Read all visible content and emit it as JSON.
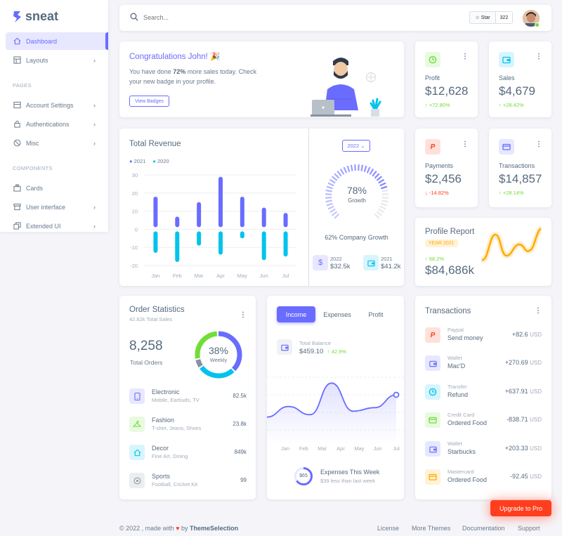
{
  "brand": {
    "name": "sneat",
    "color": "#696cff"
  },
  "sidebar": {
    "items": [
      {
        "label": "Dashboard",
        "icon": "home-icon",
        "active": true
      },
      {
        "label": "Layouts",
        "icon": "layout-icon"
      },
      {
        "label": "Account Settings",
        "icon": "dock-icon"
      },
      {
        "label": "Authentications",
        "icon": "lock-icon"
      },
      {
        "label": "Misc",
        "icon": "cube-icon"
      },
      {
        "label": "Cards",
        "icon": "collection-icon"
      },
      {
        "label": "User interface",
        "icon": "box-icon"
      },
      {
        "label": "Extended UI",
        "icon": "copy-icon"
      }
    ],
    "sections": [
      "PAGES",
      "COMPONENTS"
    ]
  },
  "topbar": {
    "search_placeholder": "Search...",
    "star_label": "Star",
    "star_count": "322"
  },
  "congrats": {
    "title": "Congratulations John! 🎉",
    "text_pre": "You have done ",
    "text_bold": "72%",
    "text_post": " more sales today. Check your new badge in your profile.",
    "button": "View Badges"
  },
  "stats": {
    "profit": {
      "label": "Profit",
      "value": "$12,628",
      "change": "↑ +72.80%"
    },
    "sales": {
      "label": "Sales",
      "value": "$4,679",
      "change": "↑ +28.42%"
    },
    "payments": {
      "label": "Payments",
      "value": "$2,456",
      "change": "↓ -14.82%"
    },
    "transactions": {
      "label": "Transactions",
      "value": "$14,857",
      "change": "↑ +28.14%"
    }
  },
  "revenue": {
    "title": "Total Revenue",
    "year_select": "2022",
    "growth_pct": "78%",
    "growth_label": "Growth",
    "company_growth": "62% Company Growth",
    "growth_fraction": 0.78,
    "summary": [
      {
        "year": "2022",
        "value": "$32.5k"
      },
      {
        "year": "2021",
        "value": "$41.2k"
      }
    ]
  },
  "profile_report": {
    "title": "Profile Report",
    "badge": "YEAR 2021",
    "change": "↑ 68.2%",
    "value": "$84,686k"
  },
  "order_stats": {
    "title": "Order Statistics",
    "subtitle": "42.82k Total Sales",
    "total": "8,258",
    "total_label": "Total Orders",
    "donut_pct": "38%",
    "donut_label": "Weekly",
    "items": [
      {
        "name": "Electronic",
        "sub": "Mobile, Earbuds, TV",
        "value": "82.5k",
        "icon": "mobile-icon",
        "color": "#696cff",
        "bg": "#e7e7ff"
      },
      {
        "name": "Fashion",
        "sub": "T-shirt, Jeans, Shoes",
        "value": "23.8k",
        "icon": "closet-icon",
        "color": "#71dd37",
        "bg": "#e8fadf"
      },
      {
        "name": "Decor",
        "sub": "Fine Art, Dining",
        "value": "849k",
        "icon": "house-icon",
        "color": "#03c3ec",
        "bg": "#d7f5fc"
      },
      {
        "name": "Sports",
        "sub": "Football, Cricket Kit",
        "value": "99",
        "icon": "football-icon",
        "color": "#8592a3",
        "bg": "#ebeef0"
      }
    ]
  },
  "income": {
    "tabs": [
      "Income",
      "Expenses",
      "Profit"
    ],
    "balance_label": "Total Balance",
    "balance_value": "$459.10",
    "balance_change": "↑ 42.9%",
    "expenses_title": "Expenses This Week",
    "expenses_sub": "$39 less than last week",
    "expenses_ring": "$65"
  },
  "transactions": {
    "title": "Transactions",
    "items": [
      {
        "cat": "Paypal",
        "name": "Send money",
        "amount": "+82.6",
        "cur": "USD",
        "icon": "paypal-icon",
        "color": "#ff3e1d",
        "bg": "#ffe0db"
      },
      {
        "cat": "Wallet",
        "name": "Mac'D",
        "amount": "+270.69",
        "cur": "USD",
        "icon": "wallet-icon",
        "color": "#696cff",
        "bg": "#e7e7ff"
      },
      {
        "cat": "Transfer",
        "name": "Refund",
        "amount": "+637.91",
        "cur": "USD",
        "icon": "chart-icon",
        "color": "#03c3ec",
        "bg": "#d7f5fc"
      },
      {
        "cat": "Credit Card",
        "name": "Ordered Food",
        "amount": "-838.71",
        "cur": "USD",
        "icon": "credit-card-icon",
        "color": "#71dd37",
        "bg": "#e8fadf"
      },
      {
        "cat": "Wallet",
        "name": "Starbucks",
        "amount": "+203.33",
        "cur": "USD",
        "icon": "wallet-icon",
        "color": "#696cff",
        "bg": "#e7e7ff"
      },
      {
        "cat": "Mastercard",
        "name": "Ordered Food",
        "amount": "-92.45",
        "cur": "USD",
        "icon": "mastercard-icon",
        "color": "#ffab00",
        "bg": "#fff2d6"
      }
    ]
  },
  "upgrade": "Upgrade to Pro",
  "footer": {
    "copy_pre": "© 2022 , made with ",
    "copy_by": " by ",
    "copy_brand": "ThemeSelection",
    "links": [
      "License",
      "More Themes",
      "Documentation",
      "Support"
    ]
  },
  "chart_data": [
    {
      "type": "bar",
      "categories": [
        "Jan",
        "Feb",
        "Mar",
        "Apr",
        "May",
        "Jun",
        "Jul"
      ],
      "series": [
        {
          "name": "2021",
          "values": [
            18,
            7,
            15,
            29,
            18,
            12,
            9
          ],
          "color": "#696cff"
        },
        {
          "name": "2020",
          "values": [
            -13,
            -18,
            -9,
            -14,
            -5,
            -17,
            -15
          ],
          "color": "#03c3ec"
        }
      ],
      "ylim": [
        -20,
        30
      ],
      "yticks": [
        30,
        20,
        10,
        0,
        -10,
        -20
      ],
      "legend": "top-left"
    },
    {
      "type": "line",
      "categories": [
        "Jan",
        "Feb",
        "Mar",
        "Apr",
        "May",
        "Jun",
        "Jul"
      ],
      "series": [
        {
          "values": [
            21,
            30,
            23,
            50,
            26,
            29,
            40
          ],
          "color": "#696cff"
        }
      ]
    }
  ]
}
